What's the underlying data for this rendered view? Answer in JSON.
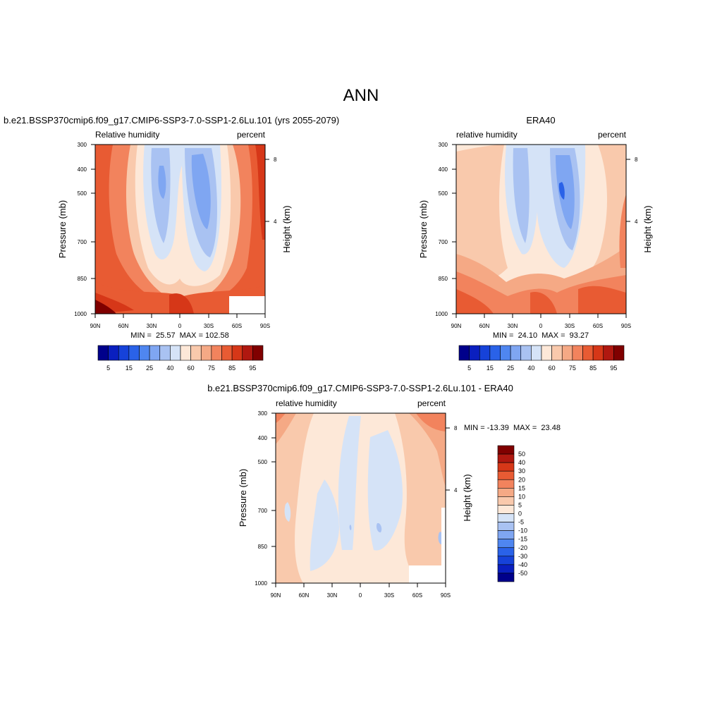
{
  "figure": {
    "title": "ANN"
  },
  "colors": {
    "full_field": [
      "#00008b",
      "#0a1fbf",
      "#1642d9",
      "#2a62e8",
      "#4f86f0",
      "#7fa6f2",
      "#a9c2f2",
      "#d5e3f7",
      "#fde8d8",
      "#f9c9ac",
      "#f5a985",
      "#f2835d",
      "#e85b33",
      "#d63718",
      "#b01810",
      "#800000"
    ],
    "difference": [
      "#00008b",
      "#0a1fbf",
      "#1642d9",
      "#2a62e8",
      "#4f86f0",
      "#7fa6f2",
      "#a9c2f2",
      "#d5e3f7",
      "#fde8d8",
      "#f9c9ac",
      "#f5a985",
      "#f2835d",
      "#e85b33",
      "#d63718",
      "#b01810",
      "#800000"
    ]
  },
  "chart_data": [
    {
      "type": "heatmap",
      "panel": "model",
      "title": "b.e21.BSSP370cmip6.f09_g17.CMIP6-SSP3-7.0-SSP1-2.6Lu.101 (yrs 2055-2079)",
      "left_label": "Relative humidity",
      "right_label": "percent",
      "ylabel": "Pressure (mb)",
      "y2label": "Height (km)",
      "x_ticks": [
        "90N",
        "60N",
        "30N",
        "0",
        "30S",
        "60S",
        "90S"
      ],
      "y_ticks": [
        "300",
        "400",
        "500",
        "700",
        "850",
        "1000"
      ],
      "y2_ticks": [
        "8",
        "4"
      ],
      "stats": "MIN =  25.57  MAX = 102.58",
      "colorbar_labels": [
        "5",
        "15",
        "25",
        "40",
        "60",
        "75",
        "85",
        "95"
      ],
      "min": 25.57,
      "max": 102.58
    },
    {
      "type": "heatmap",
      "panel": "obs",
      "title": "ERA40",
      "left_label": "relative humidity",
      "right_label": "percent",
      "ylabel": "Pressure (mb)",
      "y2label": "Height (km)",
      "x_ticks": [
        "90N",
        "60N",
        "30N",
        "0",
        "30S",
        "60S",
        "90S"
      ],
      "y_ticks": [
        "300",
        "400",
        "500",
        "700",
        "850",
        "1000"
      ],
      "y2_ticks": [
        "8",
        "4"
      ],
      "stats": "MIN =  24.10  MAX =  93.27",
      "colorbar_labels": [
        "5",
        "15",
        "25",
        "40",
        "60",
        "75",
        "85",
        "95"
      ],
      "min": 24.1,
      "max": 93.27
    },
    {
      "type": "heatmap",
      "panel": "difference",
      "title": "b.e21.BSSP370cmip6.f09_g17.CMIP6-SSP3-7.0-SSP1-2.6Lu.101 - ERA40",
      "left_label": "relative humidity",
      "right_label": "percent",
      "ylabel": "Pressure (mb)",
      "y2label": "Height (km)",
      "x_ticks": [
        "90N",
        "60N",
        "30N",
        "0",
        "30S",
        "60S",
        "90S"
      ],
      "y_ticks": [
        "300",
        "400",
        "500",
        "700",
        "850",
        "1000"
      ],
      "y2_ticks": [
        "8",
        "4"
      ],
      "stats": "MIN = -13.39  MAX =  23.48",
      "colorbar_labels": [
        "50",
        "40",
        "30",
        "20",
        "15",
        "10",
        "5",
        "0",
        "-5",
        "-10",
        "-15",
        "-20",
        "-30",
        "-40",
        "-50"
      ],
      "min": -13.39,
      "max": 23.48
    }
  ]
}
